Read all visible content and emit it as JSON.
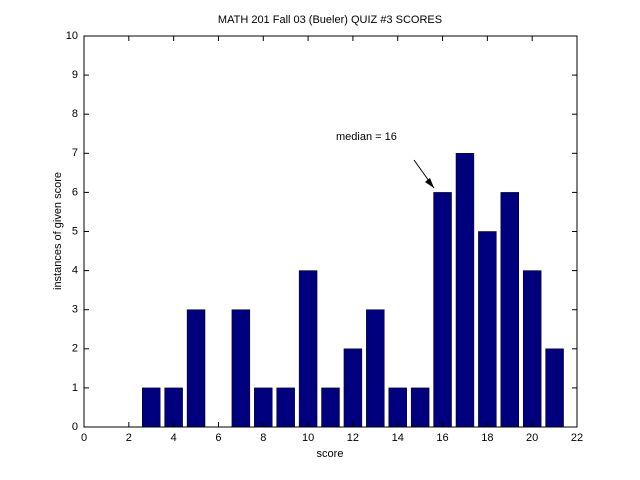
{
  "chart_data": {
    "type": "bar",
    "title": "MATH 201 Fall 03 (Bueler)    QUIZ #3 SCORES",
    "xlabel": "score",
    "ylabel": "instances of given score",
    "x": [
      3,
      4,
      5,
      6,
      7,
      8,
      9,
      10,
      11,
      12,
      13,
      14,
      15,
      16,
      17,
      18,
      19,
      20,
      21
    ],
    "values": [
      1,
      1,
      3,
      0,
      3,
      1,
      1,
      4,
      1,
      2,
      3,
      1,
      1,
      6,
      7,
      5,
      6,
      4,
      2
    ],
    "color": "#00007f",
    "xlim": [
      0,
      22
    ],
    "xticks": [
      0,
      2,
      4,
      6,
      8,
      10,
      12,
      14,
      16,
      18,
      20,
      22
    ],
    "ylim": [
      0,
      10
    ],
    "yticks": [
      0,
      1,
      2,
      3,
      4,
      5,
      6,
      7,
      8,
      9,
      10
    ],
    "annotation": "median = 16"
  }
}
